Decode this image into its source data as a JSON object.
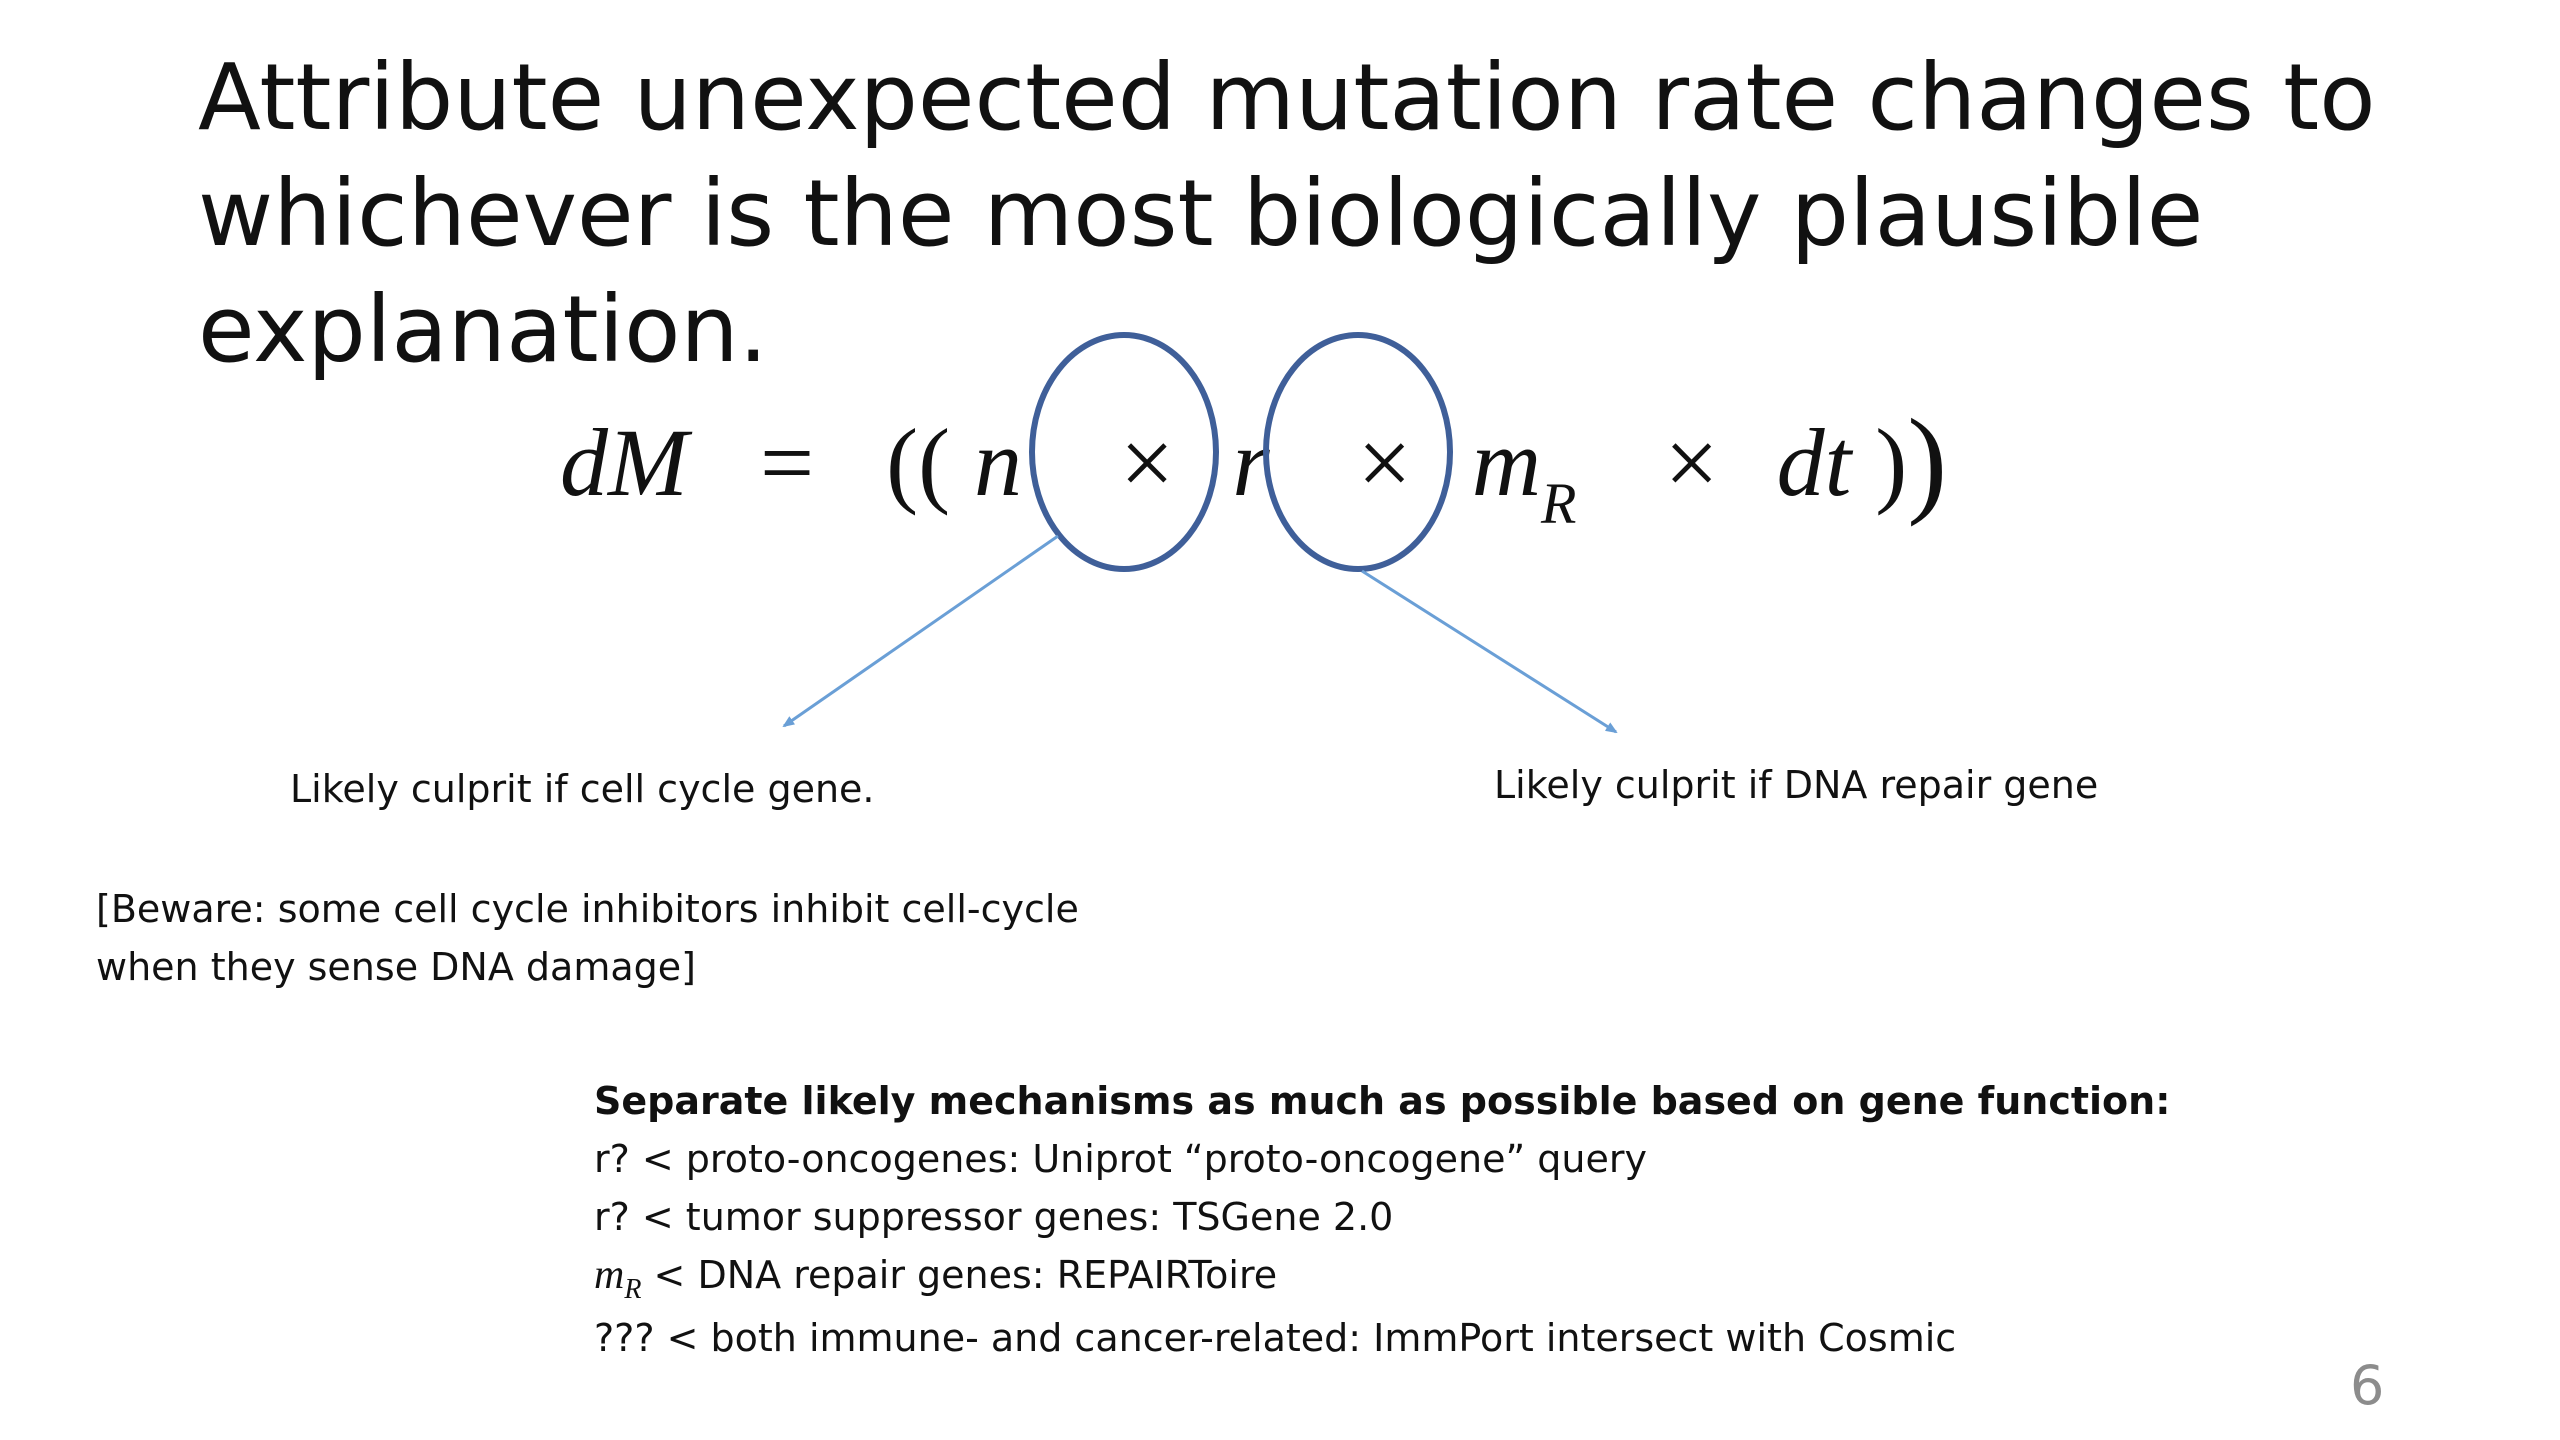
{
  "title": {
    "lines": [
      "Attribute unexpected mutation rate changes to",
      "whichever is the most biologically plausible",
      "explanation."
    ]
  },
  "equation": {
    "lhs": "dM",
    "equals": "=",
    "open": "((",
    "n": "n",
    "times": "×",
    "r": "r",
    "m": "m",
    "m_sub": "R",
    "dt": "dt",
    "close_inner": ")",
    "close_outer": ")"
  },
  "callouts": {
    "left": "Likely culprit if cell cycle gene.",
    "right": "Likely culprit if DNA repair gene"
  },
  "beware": {
    "lines": [
      "[Beware: some cell cycle inhibitors inhibit cell-cycle",
      "when they sense DNA damage]"
    ]
  },
  "mechanisms": {
    "heading": "Separate likely mechanisms as much as possible based on gene function:",
    "rows": [
      "r? < proto-oncogenes: Uniprot “proto-oncogene” query",
      "r? < tumor suppressor genes: TSGene 2.0"
    ],
    "repair_math": "m",
    "repair_math_sub": "R",
    "repair_text": " < DNA repair genes: REPAIRToire",
    "last_row": "??? < both immune- and cancer-related: ImmPort intersect with Cosmic"
  },
  "page_number": "6",
  "colors": {
    "circle": "#3f5f99",
    "arrow": "#6a9fd6",
    "page_number": "#8c8c8c"
  }
}
